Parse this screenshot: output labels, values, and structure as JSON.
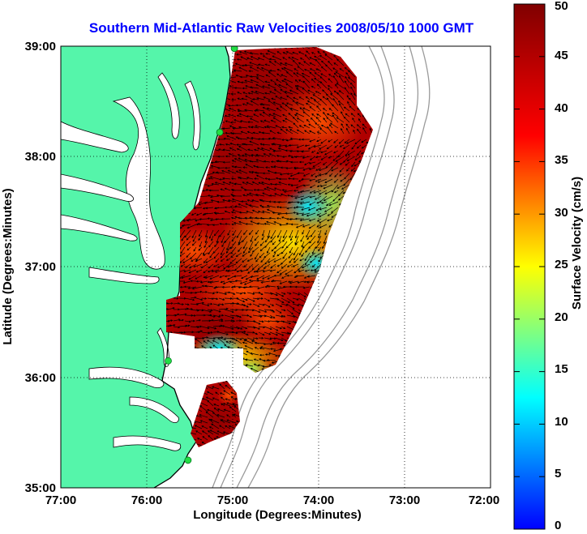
{
  "title": "Southern Mid-Atlantic Raw Velocities 2008/05/10 1000 GMT",
  "colors": {
    "title": "#0000ff",
    "land": "#55f5aa",
    "water": "#ffffff",
    "bathymetry": "#9a9a9a",
    "station": "#22dd44"
  },
  "chart_data": {
    "type": "heatmap",
    "xlabel": "Longitude (Degrees:Minutes)",
    "ylabel": "Latitude (Degrees:Minutes)",
    "xlim": [
      -77,
      -72
    ],
    "ylim": [
      35,
      39
    ],
    "x_ticks": [
      "77:00",
      "76:00",
      "75:00",
      "74:00",
      "73:00",
      "72:00"
    ],
    "y_ticks": [
      "35:00",
      "36:00",
      "37:00",
      "38:00",
      "39:00"
    ],
    "grid": "dotted",
    "colorbar": {
      "label": "Surface Velocity (cm/s)",
      "min": 0,
      "max": 50,
      "ticks": [
        "0",
        "5",
        "10",
        "15",
        "20",
        "25",
        "30",
        "35",
        "40",
        "45",
        "50"
      ]
    },
    "stations": [
      {
        "lon": -74.98,
        "lat": 38.98
      },
      {
        "lon": -75.15,
        "lat": 38.22
      },
      {
        "lon": -75.75,
        "lat": 36.15
      },
      {
        "lon": -75.52,
        "lat": 35.25
      }
    ]
  }
}
